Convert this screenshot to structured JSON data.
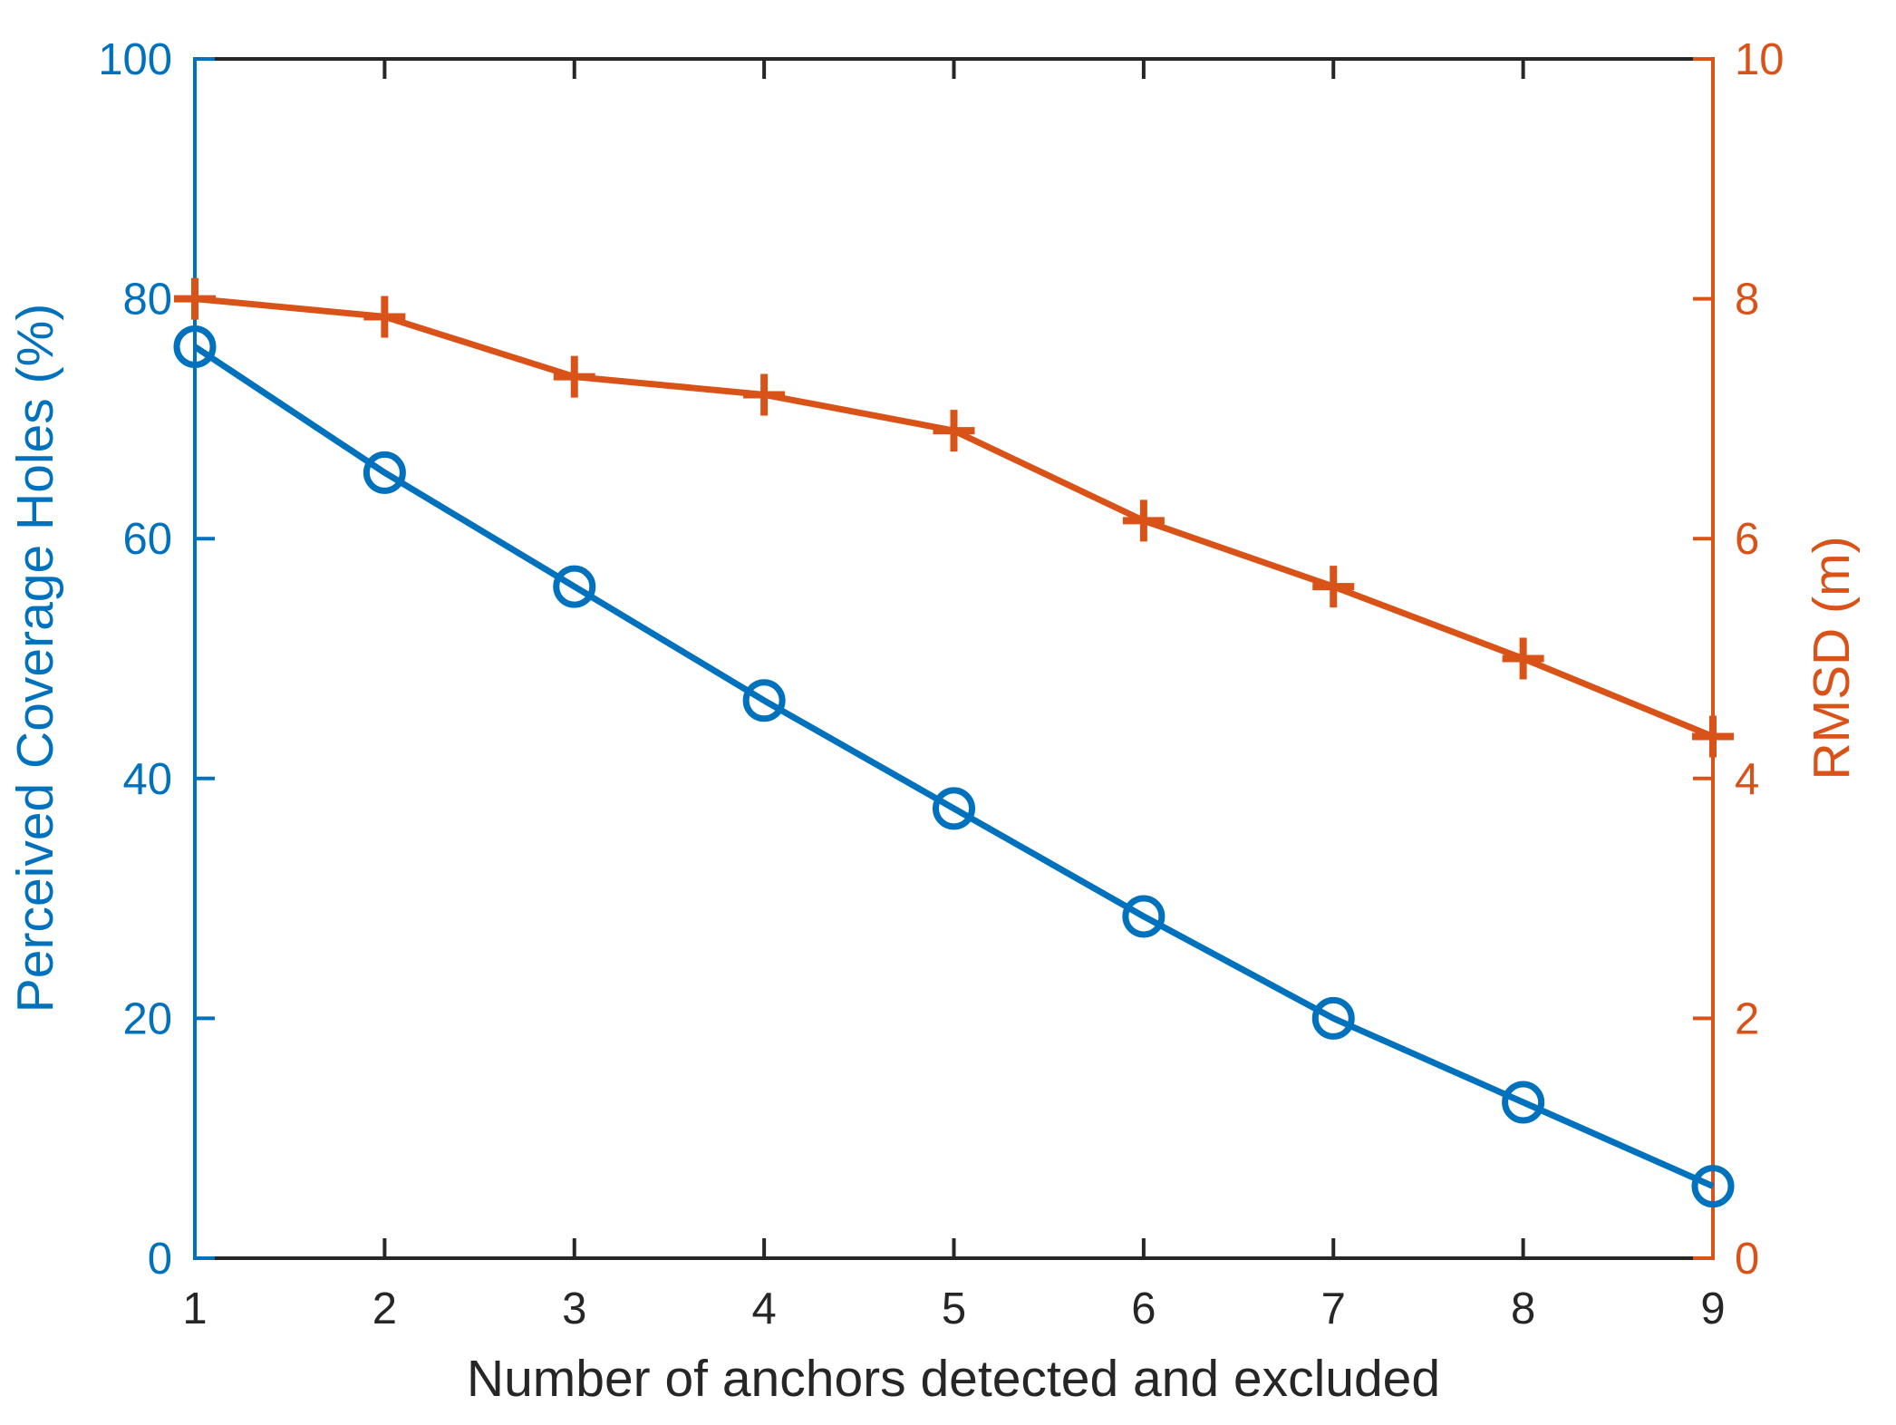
{
  "chart_data": {
    "type": "line",
    "title": "",
    "xlabel": "Number of anchors detected and excluded",
    "x": [
      1,
      2,
      3,
      4,
      5,
      6,
      7,
      8,
      9
    ],
    "x_tick_labels": [
      "1",
      "2",
      "3",
      "4",
      "5",
      "6",
      "7",
      "8",
      "9"
    ],
    "x_axis_color": "#262626",
    "grid": false,
    "legend": "none",
    "left_axis": {
      "label": "Perceived Coverage Holes (%)",
      "color": "#0072BD",
      "range": [
        0,
        100
      ],
      "ticks": [
        0,
        20,
        40,
        60,
        80,
        100
      ],
      "tick_labels": [
        "0",
        "20",
        "40",
        "60",
        "80",
        "100"
      ]
    },
    "right_axis": {
      "label": "RMSD (m)",
      "color": "#D95319",
      "range": [
        0,
        10
      ],
      "ticks": [
        0,
        2,
        4,
        6,
        8,
        10
      ],
      "tick_labels": [
        "0",
        "2",
        "4",
        "6",
        "8",
        "10"
      ]
    },
    "series": [
      {
        "name": "Perceived Coverage Holes (%)",
        "axis": "left",
        "color": "#0072BD",
        "marker": "circle",
        "values": [
          76,
          65.5,
          56,
          46.5,
          37.5,
          28.5,
          20,
          13,
          6
        ]
      },
      {
        "name": "RMSD (m)",
        "axis": "right",
        "color": "#D95319",
        "marker": "plus",
        "values": [
          8.0,
          7.85,
          7.35,
          7.2,
          6.9,
          6.15,
          5.6,
          5.0,
          4.35
        ]
      }
    ]
  }
}
